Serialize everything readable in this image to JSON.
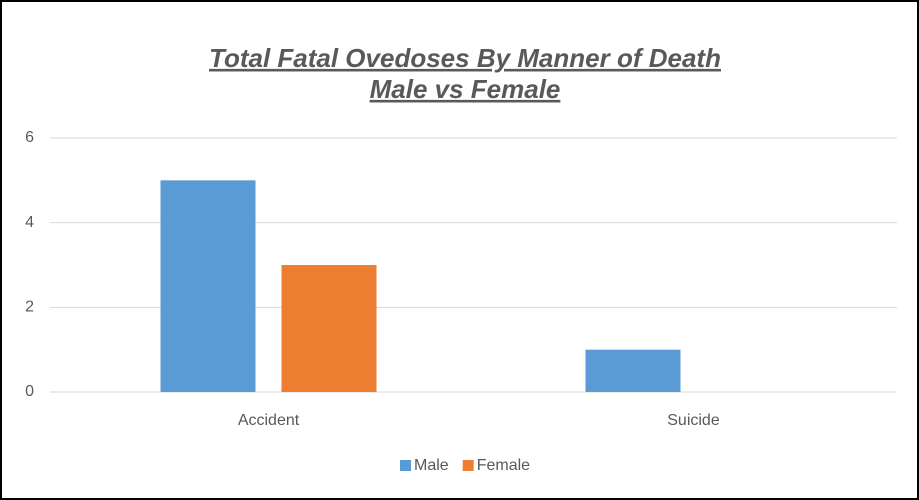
{
  "chart_data": {
    "type": "bar",
    "title": [
      "Total Fatal Ovedoses By Manner of Death",
      "Male vs Female"
    ],
    "categories": [
      "Accident",
      "Suicide"
    ],
    "series": [
      {
        "name": "Male",
        "color": "#5b9bd5",
        "values": [
          5,
          1
        ]
      },
      {
        "name": "Female",
        "color": "#ed7d31",
        "values": [
          3,
          0
        ]
      }
    ],
    "ylim": [
      0,
      6
    ],
    "yticks": [
      0,
      2,
      4,
      6
    ],
    "grid": true,
    "legend": "bottom"
  }
}
